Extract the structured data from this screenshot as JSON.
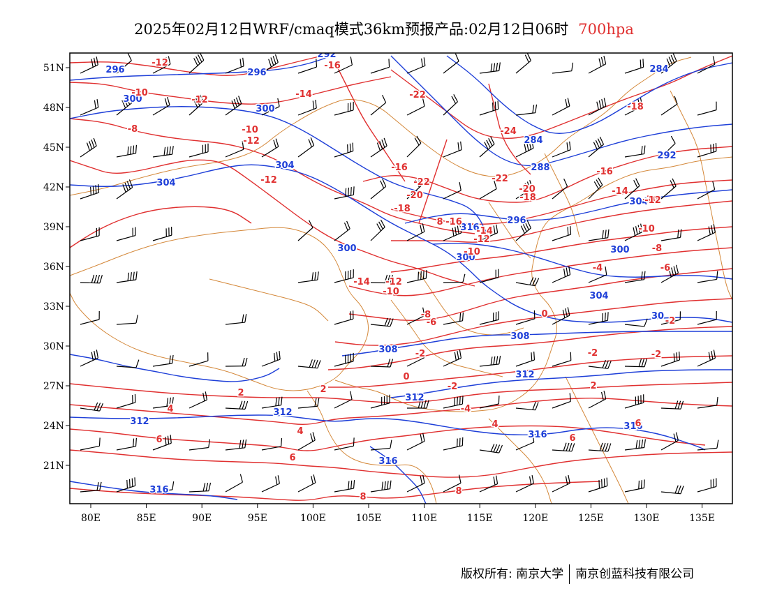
{
  "title": {
    "main": "2025年02月12日WRF/cmaq模式36km预报产品:02月12日06时",
    "level": "700hpa"
  },
  "axes": {
    "x_ticks": [
      "80E",
      "85E",
      "90E",
      "95E",
      "100E",
      "105E",
      "110E",
      "115E",
      "120E",
      "125E",
      "130E",
      "135E"
    ],
    "y_ticks": [
      "51N",
      "48N",
      "45N",
      "42N",
      "39N",
      "36N",
      "33N",
      "30N",
      "27N",
      "24N",
      "21N"
    ]
  },
  "colors": {
    "height_contour": "#1e3fd8",
    "temperature_contour": "#e03030",
    "boundary": "#d4883a",
    "wind_barb": "#000000"
  },
  "height_labels": [
    "292",
    "296",
    "296",
    "300",
    "300",
    "304",
    "304",
    "288",
    "284",
    "284",
    "292",
    "296",
    "300",
    "300",
    "304",
    "304",
    "308",
    "308",
    "312",
    "312",
    "312",
    "312",
    "316",
    "316",
    "316",
    "316",
    "316",
    "300",
    "30"
  ],
  "temp_labels": [
    "-12",
    "-16",
    "-10",
    "-12",
    "-14",
    "-8",
    "-10",
    "-12",
    "-12",
    "-22",
    "-24",
    "-18",
    "-22",
    "-22",
    "-20",
    "-18",
    "-16",
    "-20",
    "-18",
    "-16",
    "-14",
    "-12",
    "-10",
    "-16",
    "-14",
    "-12",
    "-10",
    "-8",
    "-6",
    "-4",
    "-14",
    "-12",
    "-10",
    "-8",
    "-6",
    "-2",
    "-2",
    "-2",
    "0",
    "0",
    "-2",
    "2",
    "-2",
    "2",
    "2",
    "4",
    "-4",
    "4",
    "4",
    "6",
    "6",
    "6",
    "6",
    "8",
    "8",
    "8",
    "-16",
    "-12"
  ],
  "footer": {
    "copyright": "版权所有: 南京大学",
    "company": "南京创蓝科技有限公司"
  }
}
